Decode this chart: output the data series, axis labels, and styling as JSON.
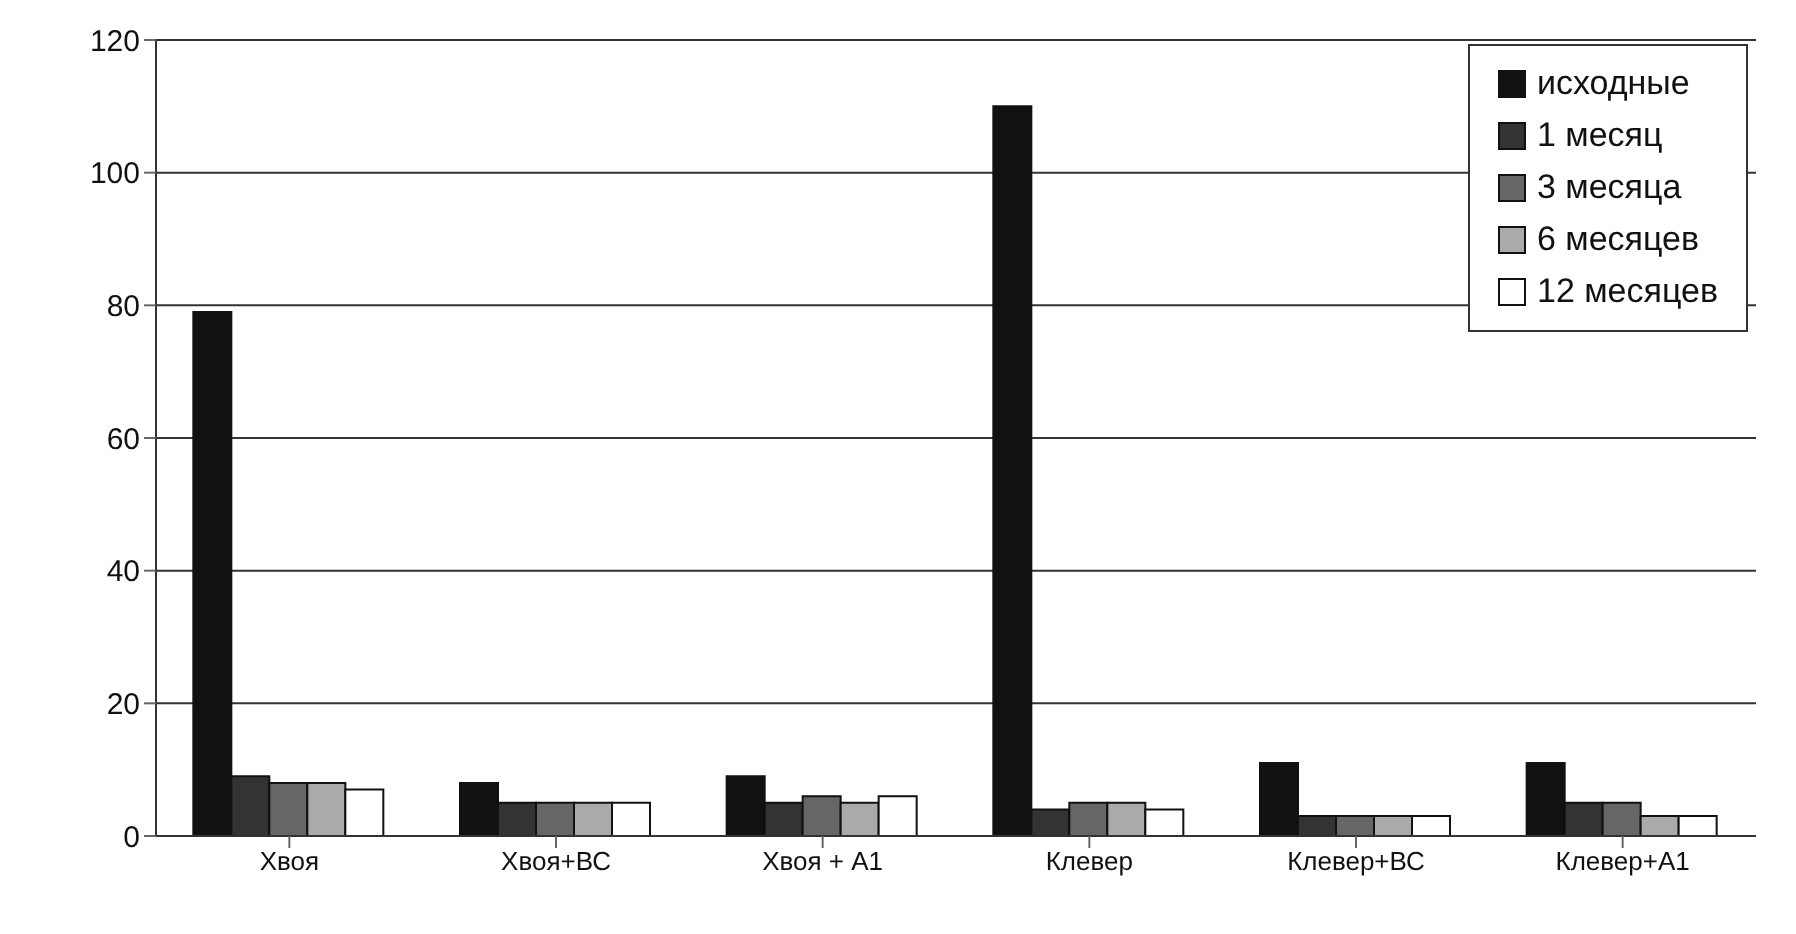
{
  "chart_data": {
    "type": "bar",
    "categories": [
      "Хвоя",
      "Хвоя+ВС",
      "Хвоя + А1",
      "Клевер",
      "Клевер+ВС",
      "Клевер+А1"
    ],
    "series": [
      {
        "name": "исходные",
        "color": "#111111",
        "values": [
          79,
          8,
          9,
          110,
          11,
          11
        ]
      },
      {
        "name": "1 месяц",
        "color": "#333333",
        "values": [
          9,
          5,
          5,
          4,
          3,
          5
        ]
      },
      {
        "name": "3 месяца",
        "color": "#666666",
        "values": [
          8,
          5,
          6,
          5,
          3,
          5
        ]
      },
      {
        "name": "6 месяцев",
        "color": "#aaaaaa",
        "values": [
          8,
          5,
          5,
          5,
          3,
          3
        ]
      },
      {
        "name": "12 месяцев",
        "color": "#ffffff",
        "values": [
          7,
          5,
          6,
          4,
          3,
          3
        ]
      }
    ],
    "ylim": [
      0,
      120
    ],
    "yticks": [
      0,
      20,
      40,
      60,
      80,
      100,
      120
    ],
    "grid": "y",
    "legend": "top right"
  }
}
